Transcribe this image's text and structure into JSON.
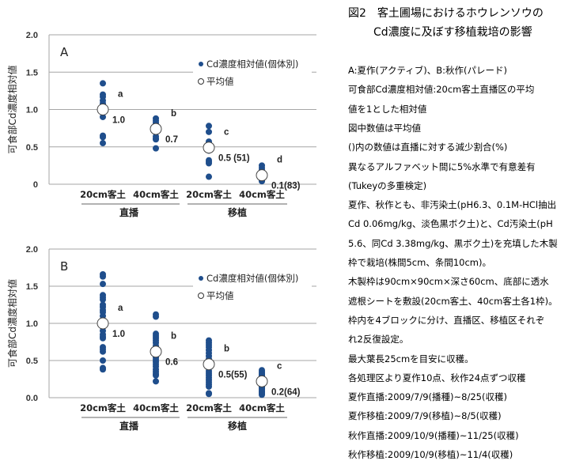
{
  "figure": {
    "title_line1": "図2　客土圃場におけるホウレンソウの",
    "title_line2": "Cd濃度に及ぼす移植栽培の影響",
    "notes": [
      "A:夏作(アクティブ)、B:秋作(パレード)",
      "可食部Cd濃度相対値:20cm客土直播区の平均",
      "値を1とした相対値",
      "図中数値は平均値",
      "()内の数値は直播に対する減少割合(%)",
      "異なるアルファベット間に5%水準で有意差有",
      "(Tukeyの多重検定)",
      "夏作、秋作とも、非汚染土(pH6.3、0.1M-HCl抽出",
      "Cd 0.06mg/kg、淡色黒ボク土)と、Cd汚染土(pH",
      "5.6、同Cd 3.38mg/kg、黒ボク土)を充填した木製",
      "枠で栽培(株間5cm、条間10cm)。",
      "木製枠は90cm×90cm×深さ60cm、底部に透水",
      "遮根シートを敷設(20cm客土、40cm客土各1枠)。",
      "枠内を4ブロックに分け、直播区、移植区それぞ",
      "れ2反復設定。",
      "最大葉長25cmを目安に収穫。",
      "各処理区より夏作10点、秋作24点ずつ収穫",
      "夏作直播:2009/7/9(播種)~8/25(収穫)",
      "夏作移植:2009/7/9(移植)~8/5(収穫)",
      "秋作直播:2009/10/9(播種)~11/25(収穫)",
      "秋作移植:2009/10/9(移植)~11/4(収穫)"
    ]
  },
  "colors": {
    "point": "#1f4e8c",
    "grid": "#a6a6a6",
    "axis": "#808080"
  },
  "chart_data": [
    {
      "type": "scatter",
      "panel": "A",
      "ylabel": "可食部Cd濃度相対値",
      "ylim": [
        0,
        2.0
      ],
      "yticks": [
        "0",
        "0.5",
        "1.0",
        "1.5",
        "2.0"
      ],
      "categories": [
        "20cm客土",
        "40cm客土",
        "20cm客土",
        "40cm客土"
      ],
      "groups": [
        "直播",
        "移植"
      ],
      "legend": {
        "individual": "Cd濃度相対値(個体別)",
        "mean": "平均値",
        "placement": "top-right"
      },
      "points": [
        [
          1.35,
          1.2,
          1.17,
          1.12,
          1.08,
          1.04,
          0.9,
          0.65,
          0.63,
          0.55
        ],
        [
          0.88,
          0.85,
          0.82,
          0.79,
          0.76,
          0.72,
          0.64,
          0.61,
          0.6,
          0.48
        ],
        [
          0.78,
          0.7,
          0.57,
          0.55,
          0.5,
          0.45,
          0.32,
          0.3,
          0.28,
          0.1
        ],
        [
          0.25,
          0.22,
          0.19,
          0.16,
          0.13,
          0.11,
          0.09,
          0.07,
          0.05,
          0.04
        ]
      ],
      "means": [
        1.0,
        0.74,
        0.49,
        0.12
      ],
      "mean_labels": [
        "1.0",
        "0.7",
        "0.5 (51)",
        "0.1(83)"
      ],
      "letters": [
        "a",
        "b",
        "c",
        "d"
      ]
    },
    {
      "type": "scatter",
      "panel": "B",
      "ylabel": "可食部Cd濃度相対値",
      "ylim": [
        0,
        2.0
      ],
      "yticks": [
        "0.0",
        "0.5",
        "1.0",
        "1.5",
        "2.0"
      ],
      "categories": [
        "20cm客土",
        "40cm客土",
        "20cm客土",
        "40cm客土"
      ],
      "groups": [
        "直播",
        "移植"
      ],
      "legend": {
        "individual": "Cd濃度相対値(個体別)",
        "mean": "平均値",
        "placement": "top-right"
      },
      "points": [
        [
          1.66,
          1.63,
          1.53,
          1.38,
          1.35,
          1.32,
          1.25,
          1.22,
          1.18,
          1.15,
          1.1,
          1.05,
          1.0,
          0.95,
          0.9,
          0.85,
          0.82,
          0.8,
          0.68,
          0.65,
          0.62,
          0.5,
          0.38,
          0.4
        ],
        [
          1.12,
          1.09,
          0.86,
          0.83,
          0.8,
          0.77,
          0.74,
          0.7,
          0.67,
          0.64,
          0.6,
          0.57,
          0.54,
          0.51,
          0.48,
          0.45,
          0.42,
          0.38,
          0.35,
          0.32,
          0.3,
          0.22,
          0.55,
          0.62
        ],
        [
          0.77,
          0.74,
          0.71,
          0.68,
          0.64,
          0.6,
          0.56,
          0.52,
          0.48,
          0.44,
          0.4,
          0.36,
          0.33,
          0.3,
          0.27,
          0.24,
          0.21,
          0.18,
          0.15,
          0.06,
          0.05,
          0.5,
          0.45,
          0.42
        ],
        [
          0.37,
          0.35,
          0.33,
          0.31,
          0.29,
          0.27,
          0.25,
          0.23,
          0.21,
          0.19,
          0.17,
          0.15,
          0.13,
          0.11,
          0.09,
          0.07,
          0.05,
          0.04,
          0.3,
          0.26,
          0.2,
          0.16,
          0.12,
          0.08
        ]
      ],
      "means": [
        1.0,
        0.62,
        0.45,
        0.22
      ],
      "mean_labels": [
        "1.0",
        "0.6",
        "0.5(55)",
        "0.2(64)"
      ],
      "letters": [
        "a",
        "b",
        "b",
        "c"
      ]
    }
  ]
}
